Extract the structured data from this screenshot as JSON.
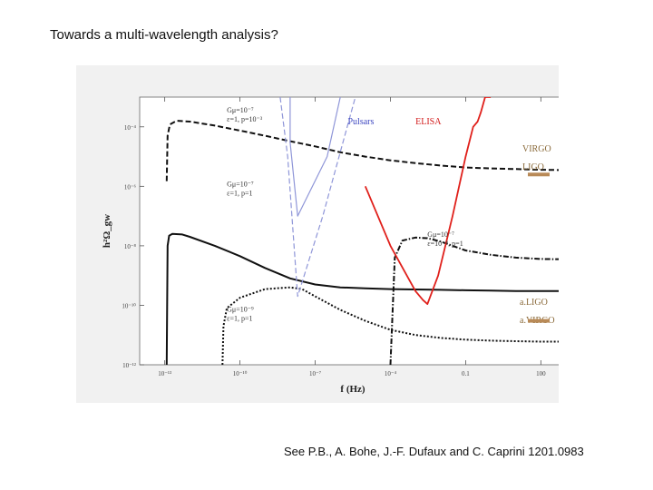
{
  "slide": {
    "title": "Towards a multi-wavelength analysis?",
    "citation": "See P.B., A. Bohe, J.-F. Dufaux and C. Caprini 1201.0983"
  },
  "chart_data": {
    "type": "line",
    "xlabel": "f (Hz)",
    "ylabel": "h²Ω_gw",
    "xscale": "log",
    "yscale": "log",
    "xlim": [
      1e-14,
      1000
    ],
    "ylim": [
      1e-12,
      0.001
    ],
    "x_ticks": [
      {
        "value": 1e-13,
        "label": "10⁻¹³"
      },
      {
        "value": 1e-10,
        "label": "10⁻¹⁰"
      },
      {
        "value": 1e-07,
        "label": "10⁻⁷"
      },
      {
        "value": 0.0001,
        "label": "10⁻⁴"
      },
      {
        "value": 0.1,
        "label": "0.1"
      },
      {
        "value": 100,
        "label": "100"
      }
    ],
    "y_ticks": [
      {
        "value": 0.0001,
        "label": "10⁻⁴"
      },
      {
        "value": 1e-06,
        "label": "10⁻⁶"
      },
      {
        "value": 1e-08,
        "label": "10⁻⁸"
      },
      {
        "value": 1e-10,
        "label": "10⁻¹⁰"
      },
      {
        "value": 1e-12,
        "label": "10⁻¹²"
      }
    ],
    "grid": false,
    "colors": {
      "pulsars": "#8f96d8",
      "elisa": "#e0201b",
      "detector_band": "#b98a57",
      "curves": "#111111",
      "label_text": "#333333",
      "pulsars_text": "#3c46c0",
      "elisa_text": "#d21a1a",
      "detector_text": "#8a6a3a"
    },
    "series": [
      {
        "id": "cs-dashed",
        "style": "dashed",
        "color": "#111111",
        "x": [
          1.2e-13,
          1.3e-13,
          1.6e-13,
          3e-13,
          1e-12,
          1e-11,
          1e-10,
          1e-09,
          1e-08,
          1e-07,
          1e-06,
          1e-05,
          0.0001,
          0.001,
          0.01,
          0.1,
          1,
          10,
          100,
          1000
        ],
        "y": [
          1.5e-06,
          5e-05,
          0.00012,
          0.00016,
          0.00015,
          0.00011,
          7.5e-05,
          5e-05,
          3.3e-05,
          2.2e-05,
          1.4e-05,
          1e-05,
          7.5e-06,
          6e-06,
          5e-06,
          4.3e-06,
          4e-06,
          3.8e-06,
          3.6e-06,
          3.5e-06
        ]
      },
      {
        "id": "cs-solid",
        "style": "solid",
        "color": "#111111",
        "x": [
          1.2e-13,
          1.3e-13,
          1.5e-13,
          2e-13,
          5e-13,
          1e-12,
          1e-11,
          1e-10,
          1e-09,
          1e-08,
          1e-07,
          1e-06,
          1e-05,
          0.0001,
          0.001,
          0.01,
          0.1,
          1,
          10,
          100,
          1000
        ],
        "y": [
          1e-12,
          1e-08,
          2.2e-08,
          2.5e-08,
          2.4e-08,
          2e-08,
          1e-08,
          4.5e-09,
          1.8e-09,
          8e-10,
          5e-10,
          4e-10,
          3.7e-10,
          3.5e-10,
          3.4e-10,
          3.3e-10,
          3.2e-10,
          3.1e-10,
          3e-10,
          3e-10,
          3e-10
        ]
      },
      {
        "id": "cs-dotted",
        "style": "dotted",
        "color": "#111111",
        "x": [
          2e-11,
          2.2e-11,
          3e-11,
          1e-10,
          1e-09,
          1e-08,
          3e-08,
          1e-07,
          1e-06,
          1e-05,
          0.0001,
          0.001,
          0.01,
          0.1,
          1,
          10,
          100,
          1000
        ],
        "y": [
          1e-12,
          2e-11,
          8e-11,
          1.8e-10,
          3.5e-10,
          4e-10,
          3.5e-10,
          2e-10,
          7e-11,
          3e-11,
          1.5e-11,
          1e-11,
          8e-12,
          7e-12,
          6.5e-12,
          6.2e-12,
          6e-12,
          6e-12
        ]
      },
      {
        "id": "cs-dashdot",
        "style": "dashdot",
        "color": "#111111",
        "x": [
          0.0001,
          0.00015,
          0.0003,
          0.001,
          0.003,
          0.01,
          0.03,
          0.1,
          1,
          10,
          100,
          1000
        ],
        "y": [
          1e-12,
          4e-09,
          1.5e-08,
          1.9e-08,
          1.8e-08,
          1.4e-08,
          1e-08,
          7e-09,
          5e-09,
          4e-09,
          3.6e-09,
          3.5e-09
        ]
      },
      {
        "id": "pulsars-solid",
        "style": "solid",
        "color": "#8f96d8",
        "x": [
          1e-08,
          1e-08,
          2e-08,
          3e-07,
          1e-06
        ],
        "y": [
          0.001,
          3e-05,
          1e-07,
          1e-05,
          0.001
        ]
      },
      {
        "id": "pulsars-dashed",
        "style": "dashed",
        "color": "#8f96d8",
        "x": [
          4e-09,
          8e-09,
          2e-08,
          2e-07,
          4e-06
        ],
        "y": [
          0.001,
          1e-05,
          2e-10,
          1e-07,
          0.001
        ]
      },
      {
        "id": "elisa",
        "style": "solid",
        "color": "#e0201b",
        "x": [
          1e-05,
          0.0001,
          0.001,
          0.002,
          0.003,
          0.008,
          0.03,
          0.1,
          0.2,
          0.3,
          0.4,
          0.6,
          1
        ],
        "y": [
          1e-06,
          1e-08,
          3e-10,
          1.5e-10,
          1.1e-10,
          1e-09,
          1e-07,
          1e-05,
          0.0001,
          0.00015,
          0.0003,
          0.001,
          0.001
        ]
      }
    ],
    "annotations": [
      {
        "id": "label-cs1",
        "x": 3e-11,
        "y": 0.0003,
        "lines": [
          "Gμ=10⁻⁷",
          "ε=1, p=10⁻³"
        ]
      },
      {
        "id": "label-cs2",
        "x": 3e-11,
        "y": 1e-06,
        "lines": [
          "Gμ=10⁻⁷",
          "ε=1, p=1"
        ]
      },
      {
        "id": "label-cs3",
        "x": 0.003,
        "y": 2e-08,
        "lines": [
          "Gμ=10⁻⁷",
          "ε=10⁻⁸, p=1"
        ]
      },
      {
        "id": "label-cs4",
        "x": 3e-11,
        "y": 6e-11,
        "lines": [
          "Gμ=10⁻⁹",
          "ε=1, p=1"
        ]
      }
    ],
    "legend_labels": [
      {
        "id": "pulsars",
        "text": "Pulsars",
        "x": 2e-06,
        "y": 0.00012
      },
      {
        "id": "elisa",
        "text": "ELISA",
        "x": 0.001,
        "y": 0.00012
      }
    ],
    "detectors": [
      {
        "id": "virgo-ligo",
        "lines": [
          "VIRGO",
          "LIGO"
        ],
        "band_y": 2.5e-06
      },
      {
        "id": "aligo-avirgo",
        "lines": [
          "a.LIGO",
          "a.VIRGO"
        ],
        "band_y": 3e-11
      }
    ]
  }
}
